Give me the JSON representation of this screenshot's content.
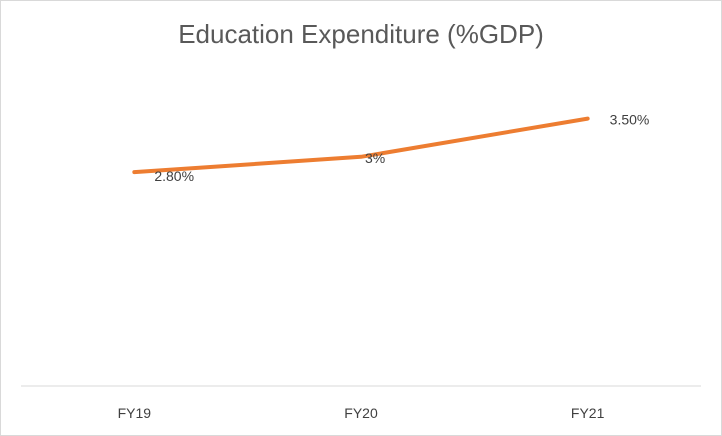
{
  "chart_data": {
    "type": "line",
    "title": "Education Expenditure (%GDP)",
    "categories": [
      "FY19",
      "FY20",
      "FY21"
    ],
    "series": [
      {
        "values": [
          2.8,
          3.0,
          3.5
        ],
        "data_labels": [
          "2.80%",
          "3%",
          "3.50%"
        ],
        "color": "#ED7D31"
      }
    ],
    "xlabel": "",
    "ylabel": "",
    "ylim": [
      0,
      4
    ],
    "grid": false,
    "legend": "none"
  }
}
